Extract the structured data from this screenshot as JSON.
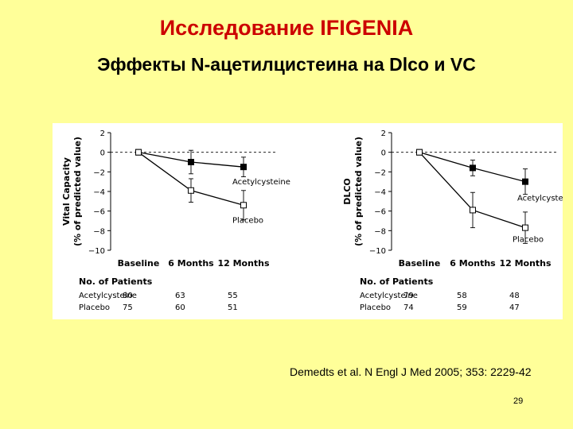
{
  "slide": {
    "title": "Исследование IFIGENIA",
    "subtitle": "Эффекты N-ацетилцистеина на Dlco и VC",
    "citation": "Demedts et al. N Engl J Med 2005; 353: 2229-42",
    "page_number": "29"
  },
  "colors": {
    "background": "#ffff99",
    "title": "#cc0000",
    "figure_bg": "#ffffff"
  },
  "chart_data": [
    {
      "type": "line",
      "ylabel_line1": "Vital Capacity",
      "ylabel_line2": "(% of predicted value)",
      "ylim": [
        -10,
        2
      ],
      "yticks": [
        "2",
        "0",
        "−2",
        "−4",
        "−6",
        "−8",
        "−10"
      ],
      "categories": [
        "Baseline",
        "6 Months",
        "12 Months"
      ],
      "grid": false,
      "reference_line_y": 0,
      "series": [
        {
          "name": "Acetylcysteine",
          "marker": "filled-square",
          "values": [
            0,
            -1.0,
            -1.5
          ],
          "errors": [
            null,
            1.2,
            1.0
          ]
        },
        {
          "name": "Placebo",
          "marker": "open-square",
          "values": [
            0,
            -3.9,
            -5.4
          ],
          "errors": [
            null,
            1.2,
            1.5
          ]
        }
      ],
      "patients": {
        "heading": "No. of Patients",
        "rows": [
          {
            "label": "Acetylcysteine",
            "values": [
              "80",
              "63",
              "55"
            ]
          },
          {
            "label": "Placebo",
            "values": [
              "75",
              "60",
              "51"
            ]
          }
        ]
      }
    },
    {
      "type": "line",
      "ylabel_line1": "DLCO",
      "ylabel_line2": "(% of predicted value)",
      "ylim": [
        -10,
        2
      ],
      "yticks": [
        "2",
        "0",
        "−2",
        "−4",
        "−6",
        "−8",
        "−10"
      ],
      "categories": [
        "Baseline",
        "6 Months",
        "12 Months"
      ],
      "grid": false,
      "reference_line_y": 0,
      "series": [
        {
          "name": "Acetylcysteine",
          "marker": "filled-square",
          "values": [
            0,
            -1.6,
            -3.0
          ],
          "errors": [
            null,
            0.8,
            1.3
          ]
        },
        {
          "name": "Placebo",
          "marker": "open-square",
          "values": [
            0,
            -5.9,
            -7.7
          ],
          "errors": [
            null,
            1.8,
            1.6
          ]
        }
      ],
      "patients": {
        "heading": "No. of Patients",
        "rows": [
          {
            "label": "Acetylcysteine",
            "values": [
              "79",
              "58",
              "48"
            ]
          },
          {
            "label": "Placebo",
            "values": [
              "74",
              "59",
              "47"
            ]
          }
        ]
      }
    }
  ]
}
